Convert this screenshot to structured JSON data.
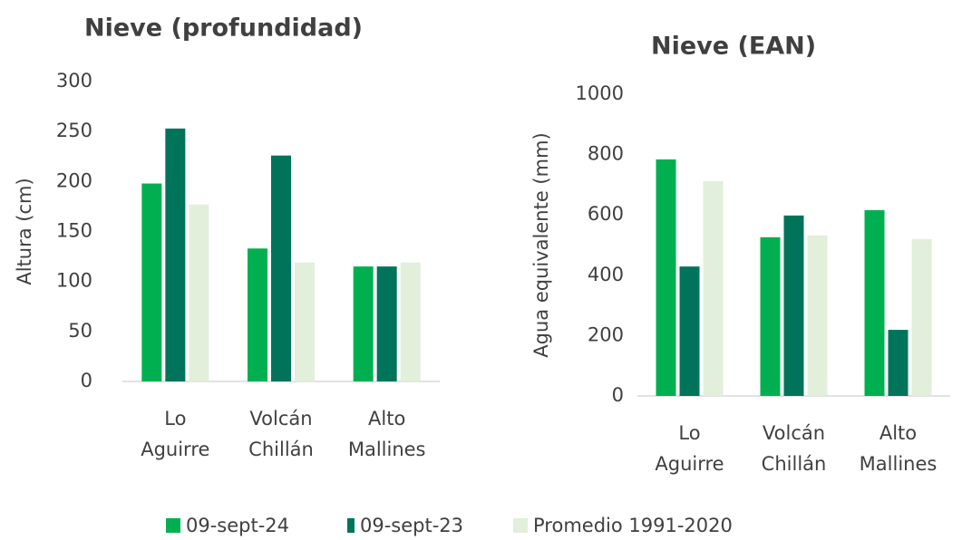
{
  "chart_data": [
    {
      "type": "bar",
      "title": "Nieve (profundidad)",
      "y_label": "Altura (cm)",
      "categories": [
        [
          "Lo",
          "Aguirre"
        ],
        [
          "Volcán",
          "Chillán"
        ],
        [
          "Alto",
          "Mallines"
        ]
      ],
      "series": [
        {
          "name": "09-sept-24",
          "color": "#00b050",
          "values": [
            198,
            133,
            115
          ]
        },
        {
          "name": "09-sept-23",
          "color": "#00745a",
          "values": [
            253,
            226,
            115
          ]
        },
        {
          "name": "Promedio 1991-2020",
          "color": "#e2efda",
          "values": [
            177,
            119,
            119
          ]
        }
      ],
      "ylim": [
        0,
        300
      ],
      "yticks": [
        0,
        50,
        100,
        150,
        200,
        250,
        300
      ],
      "grid": false
    },
    {
      "type": "bar",
      "title": "Nieve (EAN)",
      "y_label": "Agua equivalente (mm)",
      "categories": [
        [
          "Lo",
          "Aguirre"
        ],
        [
          "Volcán",
          "Chillán"
        ],
        [
          "Alto",
          "Mallines"
        ]
      ],
      "series": [
        {
          "color": "#00b050",
          "values": [
            784,
            526,
            616
          ]
        },
        {
          "color": "#00745a",
          "values": [
            429,
            598,
            219
          ]
        },
        {
          "color": "#e2efda",
          "values": [
            712,
            532,
            520
          ]
        }
      ],
      "ylim": [
        0,
        1000
      ],
      "yticks": [
        0,
        200,
        400,
        600,
        800,
        1000
      ],
      "grid": false
    }
  ]
}
